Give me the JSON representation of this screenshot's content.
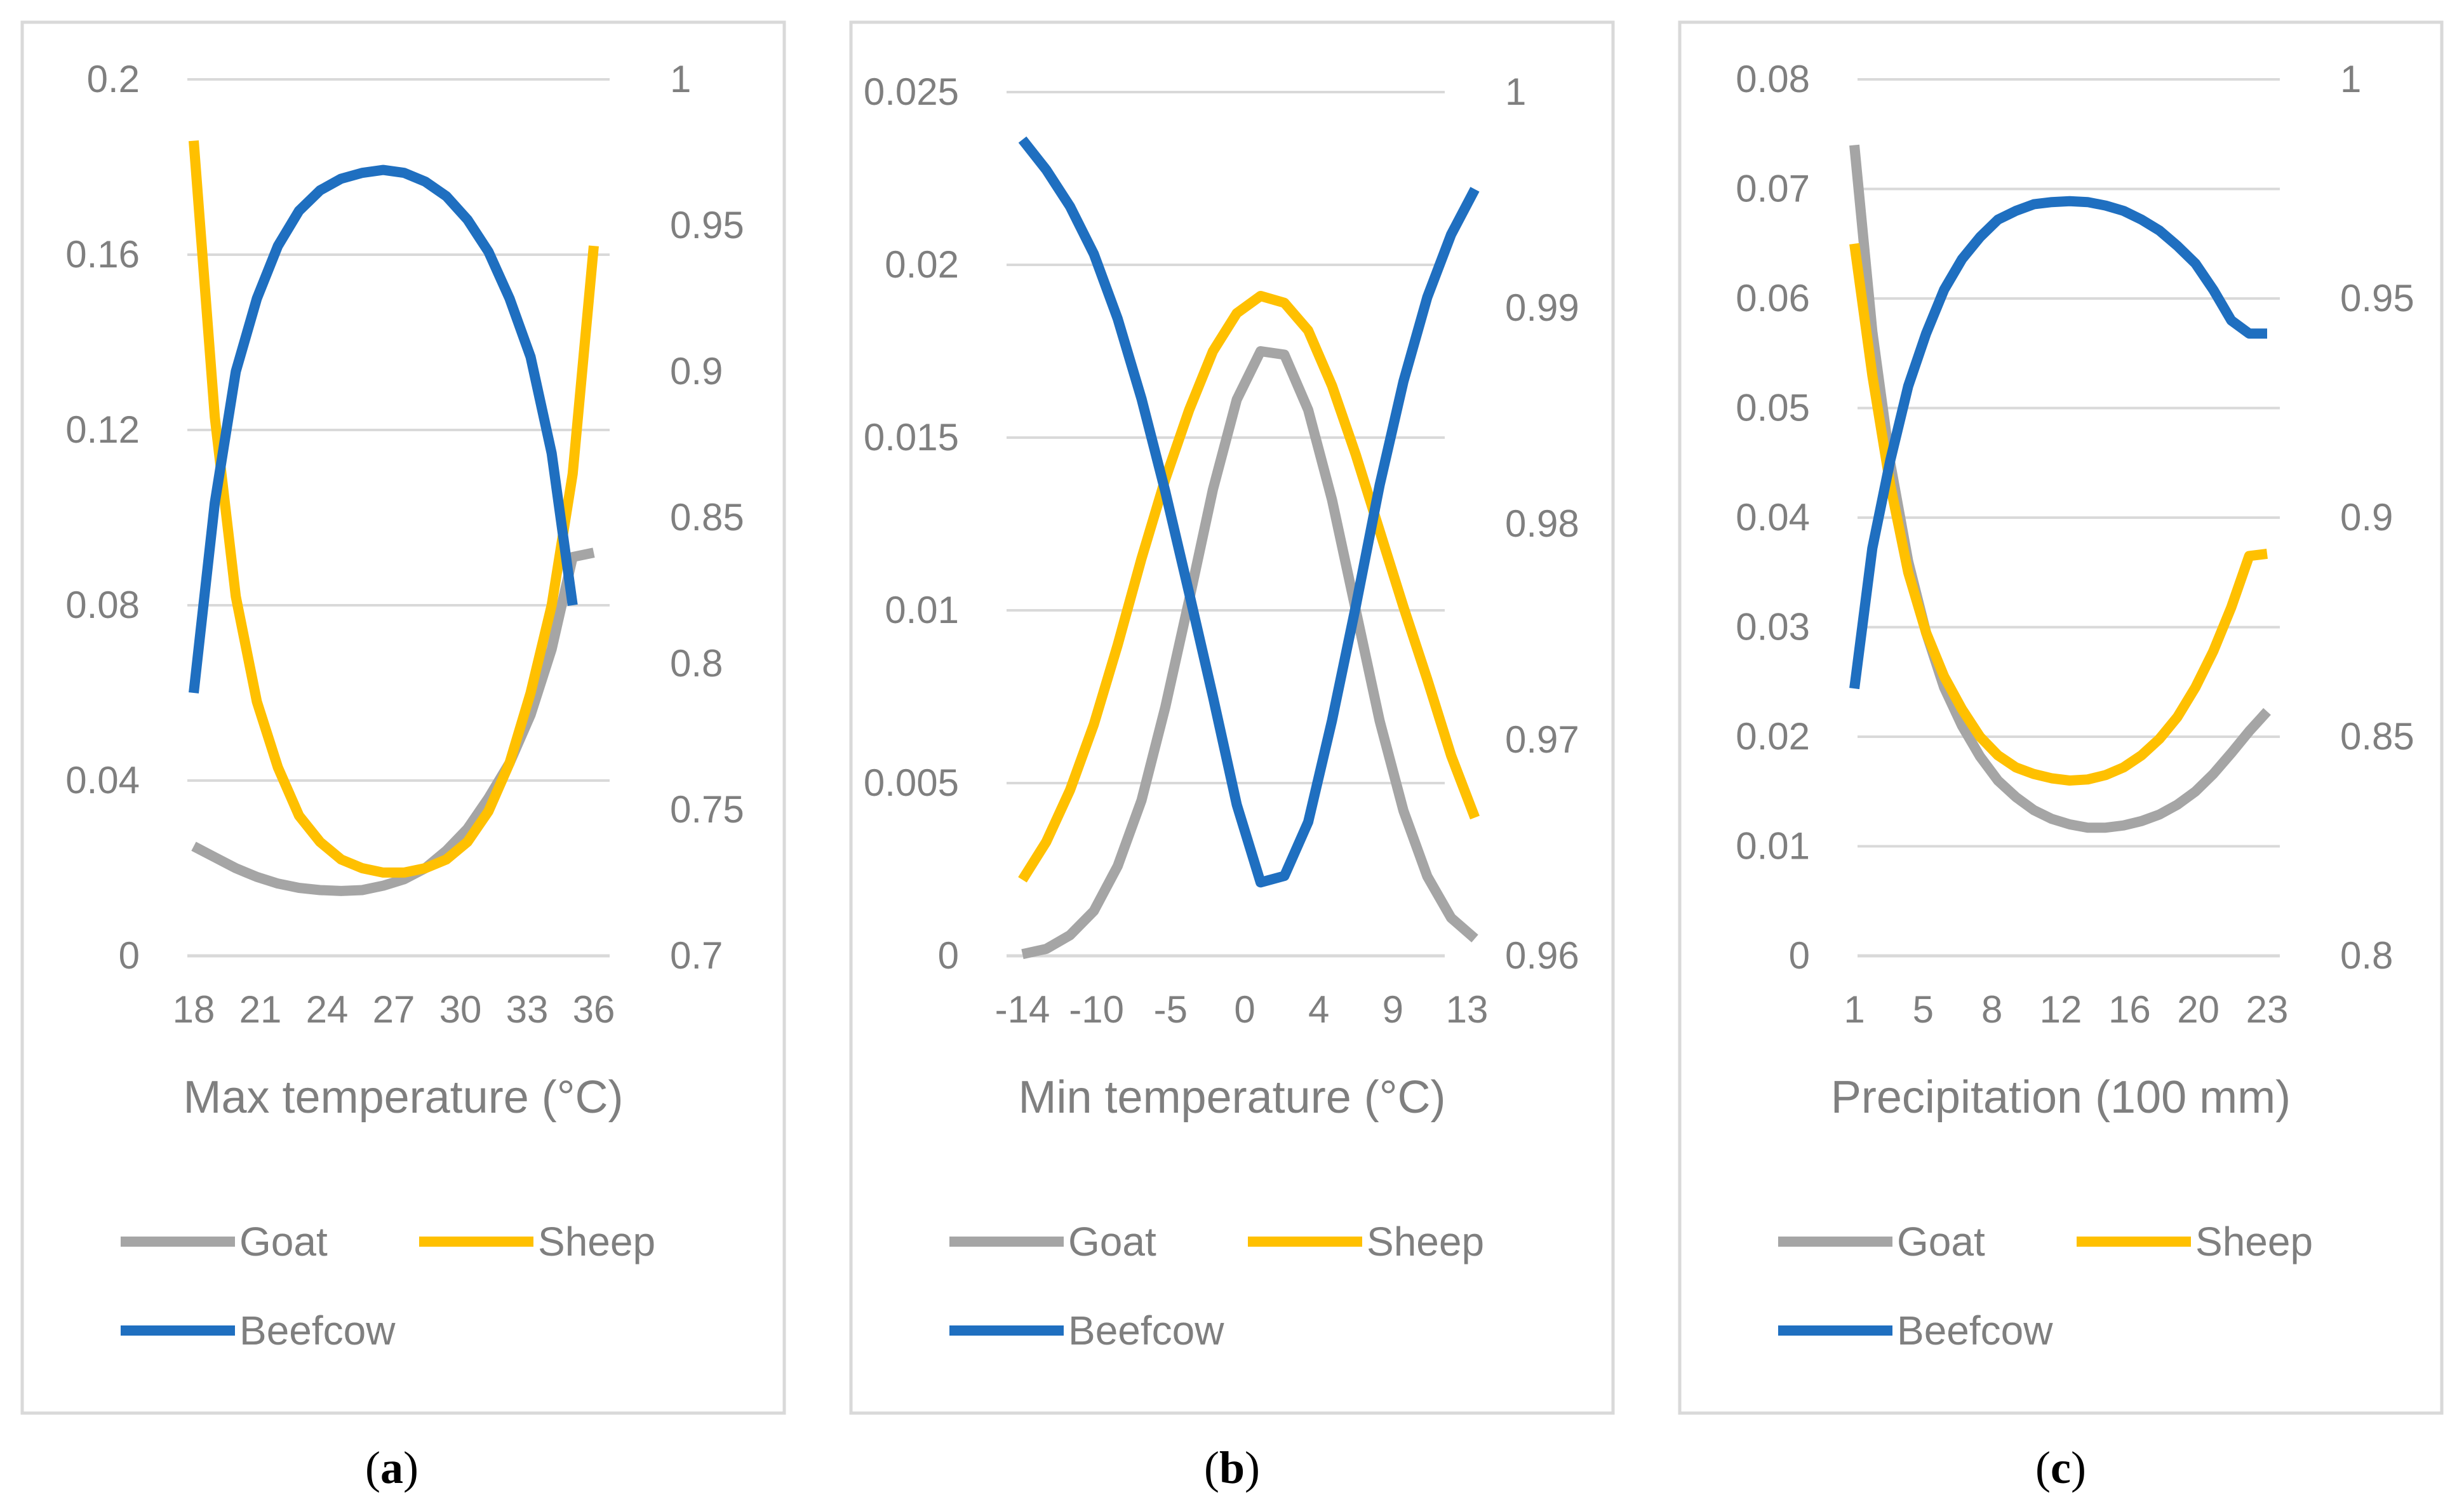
{
  "colors": {
    "goat": "#a5a5a5",
    "sheep": "#ffc000",
    "beefcow": "#1f6fc0",
    "grid": "#d9d9d9",
    "text": "#7f7f7f",
    "frame": "#d9d9d9"
  },
  "chart_data": [
    {
      "type": "line",
      "caption": {
        "letter": "a"
      },
      "xlabel": "Max temperature (°C)",
      "x_ticks": [
        "18",
        "21",
        "24",
        "27",
        "30",
        "33",
        "36"
      ],
      "x": [
        18,
        37
      ],
      "left_ticks": [
        "0.2",
        "0.16",
        "0.12",
        "0.08",
        "0.04",
        "0"
      ],
      "right_ticks": [
        "1",
        "0.95",
        "0.9",
        "0.85",
        "0.8",
        "0.75",
        "0.7"
      ],
      "ylim_left": [
        0,
        0.2
      ],
      "ylim_right": [
        0.7,
        1.0
      ],
      "series": [
        {
          "name": "Goat",
          "axis": "left",
          "color_key": "goat",
          "x": [
            18,
            19,
            20,
            21,
            22,
            23,
            24,
            25,
            26,
            27,
            28,
            29,
            30,
            31,
            32,
            33,
            34,
            35,
            36,
            37
          ],
          "values": [
            0.025,
            0.0225,
            0.02,
            0.018,
            0.0165,
            0.0155,
            0.015,
            0.0148,
            0.015,
            0.016,
            0.0175,
            0.02,
            0.024,
            0.029,
            0.036,
            0.044,
            0.055,
            0.07,
            0.091,
            0.092
          ]
        },
        {
          "name": "Sheep",
          "axis": "left",
          "color_key": "sheep",
          "x": [
            18,
            19,
            20,
            21,
            22,
            23,
            24,
            25,
            26,
            27,
            28,
            29,
            30,
            31,
            32,
            33,
            34,
            35,
            36,
            37
          ],
          "values": [
            0.186,
            0.123,
            0.082,
            0.058,
            0.043,
            0.032,
            0.026,
            0.022,
            0.02,
            0.019,
            0.019,
            0.02,
            0.022,
            0.026,
            0.033,
            0.044,
            0.06,
            0.08,
            0.11,
            0.162
          ]
        },
        {
          "name": "Beefcow",
          "axis": "right",
          "color_key": "beefcow",
          "x": [
            18,
            19,
            20,
            21,
            22,
            23,
            24,
            25,
            26,
            27,
            28,
            29,
            30,
            31,
            32,
            33,
            34,
            35,
            36
          ],
          "values": [
            0.79,
            0.855,
            0.9,
            0.925,
            0.943,
            0.955,
            0.962,
            0.966,
            0.968,
            0.969,
            0.968,
            0.965,
            0.96,
            0.952,
            0.941,
            0.925,
            0.905,
            0.872,
            0.82
          ]
        }
      ]
    },
    {
      "type": "line",
      "caption": {
        "letter": "b"
      },
      "xlabel": "Min temperature (°C)",
      "x_ticks": [
        "-14",
        "-10",
        "-5",
        "0",
        "4",
        "9",
        "13"
      ],
      "x": [
        -14,
        14
      ],
      "left_ticks": [
        "0.025",
        "0.02",
        "0.015",
        "0.01",
        "0.005",
        "0"
      ],
      "right_ticks": [
        "1",
        "0.99",
        "0.98",
        "0.97",
        "0.96"
      ],
      "ylim_left": [
        0,
        0.025
      ],
      "ylim_right": [
        0.96,
        1.0
      ],
      "series": [
        {
          "name": "Goat",
          "axis": "left",
          "color_key": "goat",
          "x": [
            -14,
            -12.5,
            -11,
            -9.5,
            -8,
            -6.5,
            -5,
            -3.5,
            -2,
            -0.5,
            1,
            2.5,
            4,
            5.5,
            7,
            8.5,
            10,
            11.5,
            13,
            14.5
          ],
          "values": [
            5e-05,
            0.0002,
            0.0006,
            0.0013,
            0.0026,
            0.0045,
            0.0072,
            0.0103,
            0.0135,
            0.0161,
            0.0175,
            0.0174,
            0.0158,
            0.0132,
            0.01,
            0.0068,
            0.0042,
            0.0023,
            0.0011,
            0.0005
          ]
        },
        {
          "name": "Sheep",
          "axis": "left",
          "color_key": "sheep",
          "x": [
            -14,
            -12.5,
            -11,
            -9.5,
            -8,
            -6.5,
            -5,
            -3.5,
            -2,
            -0.5,
            1,
            2.5,
            4,
            5.5,
            7,
            8.5,
            10,
            11.5,
            13,
            14.5
          ],
          "values": [
            0.0022,
            0.0033,
            0.0048,
            0.0067,
            0.009,
            0.0115,
            0.0138,
            0.0158,
            0.0175,
            0.0186,
            0.0191,
            0.0189,
            0.0181,
            0.0165,
            0.0145,
            0.0123,
            0.0101,
            0.008,
            0.0058,
            0.004
          ]
        },
        {
          "name": "Beefcow",
          "axis": "right",
          "color_key": "beefcow",
          "x": [
            -14,
            -12.5,
            -11,
            -9.5,
            -8,
            -6.5,
            -5,
            -3.5,
            -2,
            -0.5,
            1,
            2.5,
            4,
            5.5,
            7,
            8.5,
            10,
            11.5,
            13,
            14.5
          ],
          "values": [
            0.9978,
            0.9964,
            0.9947,
            0.9925,
            0.9895,
            0.9858,
            0.9815,
            0.9768,
            0.972,
            0.967,
            0.9634,
            0.9637,
            0.9662,
            0.9709,
            0.9762,
            0.9818,
            0.9866,
            0.9905,
            0.9934,
            0.9955
          ]
        }
      ]
    },
    {
      "type": "line",
      "caption": {
        "letter": "c"
      },
      "xlabel": "Precipitation (100 mm)",
      "x_ticks": [
        "1",
        "5",
        "8",
        "12",
        "16",
        "20",
        "23"
      ],
      "x": [
        1,
        24
      ],
      "left_ticks": [
        "0.08",
        "0.07",
        "0.06",
        "0.05",
        "0.04",
        "0.03",
        "0.02",
        "0.01",
        "0"
      ],
      "right_ticks": [
        "1",
        "0.95",
        "0.9",
        "0.85",
        "0.8"
      ],
      "ylim_left": [
        0,
        0.08
      ],
      "ylim_right": [
        0.8,
        1.0
      ],
      "series": [
        {
          "name": "Goat",
          "axis": "left",
          "color_key": "goat",
          "x": [
            1,
            2,
            3,
            4,
            5,
            6,
            7,
            8,
            9,
            10,
            11,
            12,
            13,
            14,
            15,
            16,
            17,
            18,
            19,
            20,
            21,
            22,
            23,
            24
          ],
          "values": [
            0.074,
            0.057,
            0.045,
            0.036,
            0.0295,
            0.0245,
            0.021,
            0.0182,
            0.016,
            0.0145,
            0.0133,
            0.0125,
            0.012,
            0.0117,
            0.0117,
            0.0119,
            0.0123,
            0.0129,
            0.0138,
            0.015,
            0.0166,
            0.0185,
            0.0205,
            0.0223
          ]
        },
        {
          "name": "Sheep",
          "axis": "left",
          "color_key": "sheep",
          "x": [
            1,
            2,
            3,
            4,
            5,
            6,
            7,
            8,
            9,
            10,
            11,
            12,
            13,
            14,
            15,
            16,
            17,
            18,
            19,
            20,
            21,
            22,
            23,
            24
          ],
          "values": [
            0.065,
            0.053,
            0.043,
            0.035,
            0.0295,
            0.0255,
            0.0225,
            0.02,
            0.0183,
            0.0172,
            0.0166,
            0.0162,
            0.016,
            0.0161,
            0.0165,
            0.0172,
            0.0183,
            0.0198,
            0.0218,
            0.0245,
            0.0278,
            0.0318,
            0.0365,
            0.0367
          ]
        },
        {
          "name": "Beefcow",
          "axis": "right",
          "color_key": "beefcow",
          "x": [
            1,
            2,
            3,
            4,
            5,
            6,
            7,
            8,
            9,
            10,
            11,
            12,
            13,
            14,
            15,
            16,
            17,
            18,
            19,
            20,
            21,
            22,
            23,
            24
          ],
          "values": [
            0.861,
            0.893,
            0.913,
            0.93,
            0.942,
            0.952,
            0.959,
            0.964,
            0.968,
            0.97,
            0.9715,
            0.972,
            0.9722,
            0.972,
            0.9712,
            0.97,
            0.968,
            0.9655,
            0.962,
            0.958,
            0.952,
            0.945,
            0.942,
            0.942
          ]
        }
      ]
    }
  ]
}
